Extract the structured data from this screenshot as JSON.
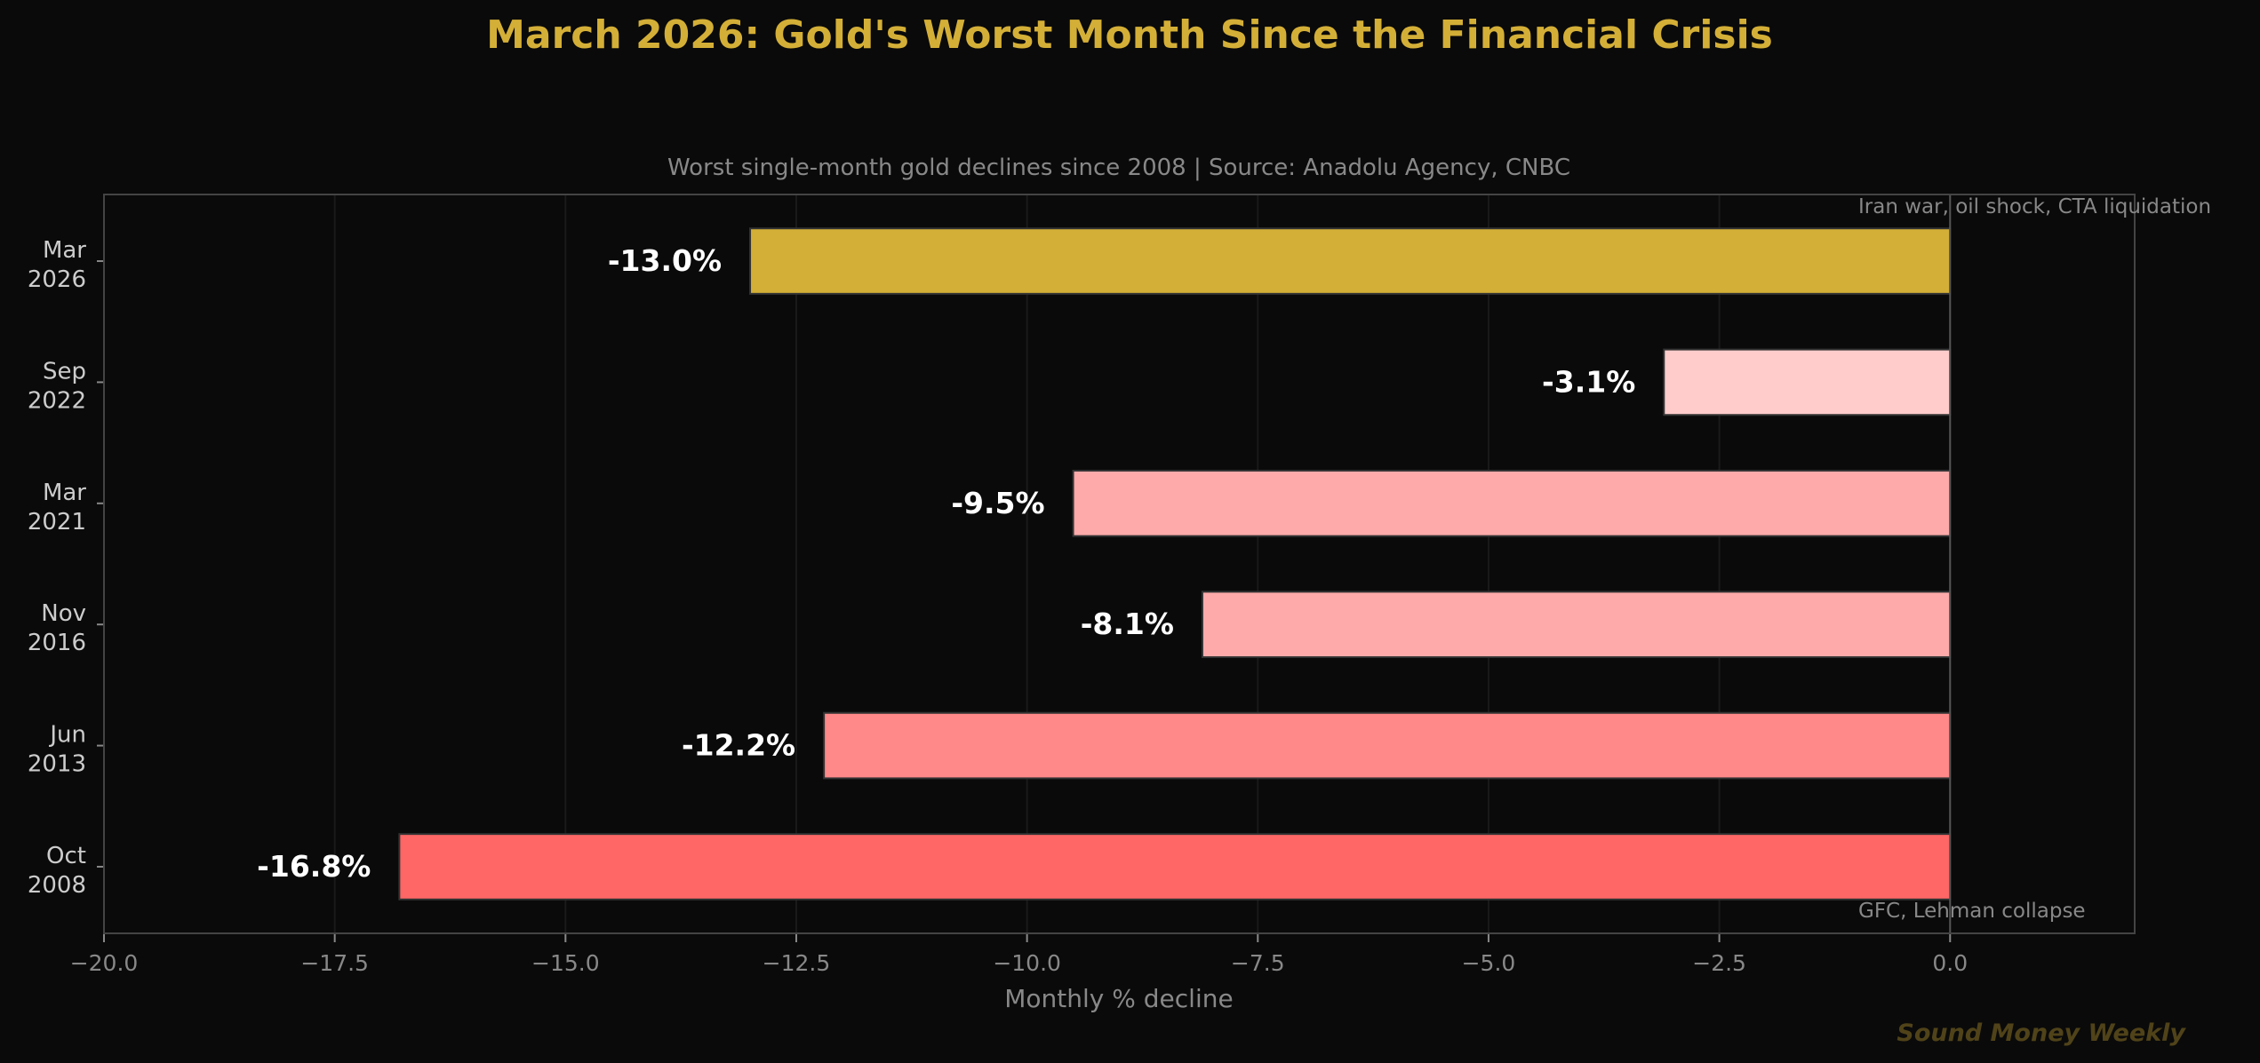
{
  "chart_data": {
    "type": "bar",
    "orientation": "horizontal",
    "title": "March 2026: Gold's Worst Month Since the Financial Crisis",
    "subtitle": "Worst single-month gold declines since 2008  |  Source: Anadolu Agency, CNBC",
    "xlabel": "Monthly % decline",
    "ylabel": "",
    "xlim": [
      -20,
      2
    ],
    "xticks": [
      -20.0,
      -17.5,
      -15.0,
      -12.5,
      -10.0,
      -7.5,
      -5.0,
      -2.5,
      0.0
    ],
    "xtick_labels": [
      "−20.0",
      "−17.5",
      "−15.0",
      "−12.5",
      "−10.0",
      "−7.5",
      "−5.0",
      "−2.5",
      "0.0"
    ],
    "grid": "vertical, faint",
    "categories": [
      [
        "Mar",
        "2026"
      ],
      [
        "Sep",
        "2022"
      ],
      [
        "Mar",
        "2021"
      ],
      [
        "Nov",
        "2016"
      ],
      [
        "Jun",
        "2013"
      ],
      [
        "Oct",
        "2008"
      ]
    ],
    "values": [
      -13.0,
      -3.1,
      -9.5,
      -8.1,
      -12.2,
      -16.8
    ],
    "data_labels": [
      "-13.0%",
      "-3.1%",
      "-9.5%",
      "-8.1%",
      "-12.2%",
      "-16.8%"
    ],
    "colors": [
      "#D4AF37",
      "#FFCCCB",
      "#FFAAAA",
      "#FFAAAA",
      "#FF8888",
      "#FF6666"
    ],
    "annotations": [
      {
        "text": "Iran war, oil shock, CTA liquidation",
        "category": "Mar 2026"
      },
      {
        "text": "GFC, Lehman collapse",
        "category": "Oct 2008"
      }
    ],
    "watermark": "Sound Money Weekly"
  },
  "theme": {
    "background": "#0a0a0a",
    "title_color": "#D4AF37",
    "muted_text": "#888888",
    "axis_color": "#444444"
  }
}
